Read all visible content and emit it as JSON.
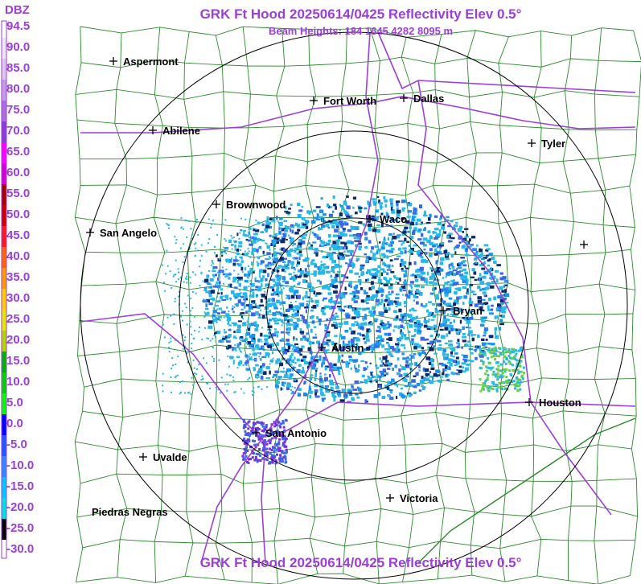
{
  "header": {
    "title": "GRK Ft Hood 20250614/0425 Reflectivity Elev 0.5°",
    "beam_heights": "Beam Heights: 184 1645 4282 8095 m"
  },
  "footer": {
    "title": "GRK Ft Hood 20250614/0425 Reflectivity Elev 0.5°"
  },
  "legend": {
    "unit": "DBZ",
    "ticks": [
      "94.5",
      "90.0",
      "85.0",
      "80.0",
      "75.0",
      "70.0",
      "65.0",
      "60.0",
      "55.0",
      "50.0",
      "45.0",
      "40.0",
      "35.0",
      "30.0",
      "25.0",
      "20.0",
      "15.0",
      "10.0",
      "5.0",
      "0.0",
      "-5.0",
      "-10.0",
      "-15.0",
      "-20.0",
      "-25.0",
      "-30.0"
    ],
    "colors": [
      "#ffffff",
      "#eee4f7",
      "#dcc6f0",
      "#c59be5",
      "#a86ee0",
      "#8a3ed6",
      "#ff00ff",
      "#d400d4",
      "#a80000",
      "#cc0000",
      "#ff1a1a",
      "#ff6600",
      "#ff9900",
      "#ffcc00",
      "#e6e600",
      "#b3d400",
      "#00b300",
      "#00d400",
      "#00ff00",
      "#0000ff",
      "#1e5aff",
      "#2e8bff",
      "#00c8ff",
      "#00e0e0",
      "#000000",
      "#ffffff"
    ]
  },
  "cities": [
    {
      "name": "Aspermont"
    },
    {
      "name": "Fort Worth"
    },
    {
      "name": "Dallas"
    },
    {
      "name": "Abilene"
    },
    {
      "name": "Tyler"
    },
    {
      "name": "Brownwood"
    },
    {
      "name": "Waco"
    },
    {
      "name": "San Angelo"
    },
    {
      "name": "Bryan"
    },
    {
      "name": "Austin"
    },
    {
      "name": "Houston"
    },
    {
      "name": "San Antonio"
    },
    {
      "name": "Uvalde"
    },
    {
      "name": "Victoria"
    },
    {
      "name": "Piedras Negras"
    },
    {
      "name": ""
    }
  ],
  "colors": {
    "title": "#9b3fd8",
    "highway": "#9b3fd8",
    "county": "#2a8a2a",
    "echo": "#26b8e6",
    "echo_strong": "#3a66e8",
    "echo_core": "#6ad04a"
  }
}
